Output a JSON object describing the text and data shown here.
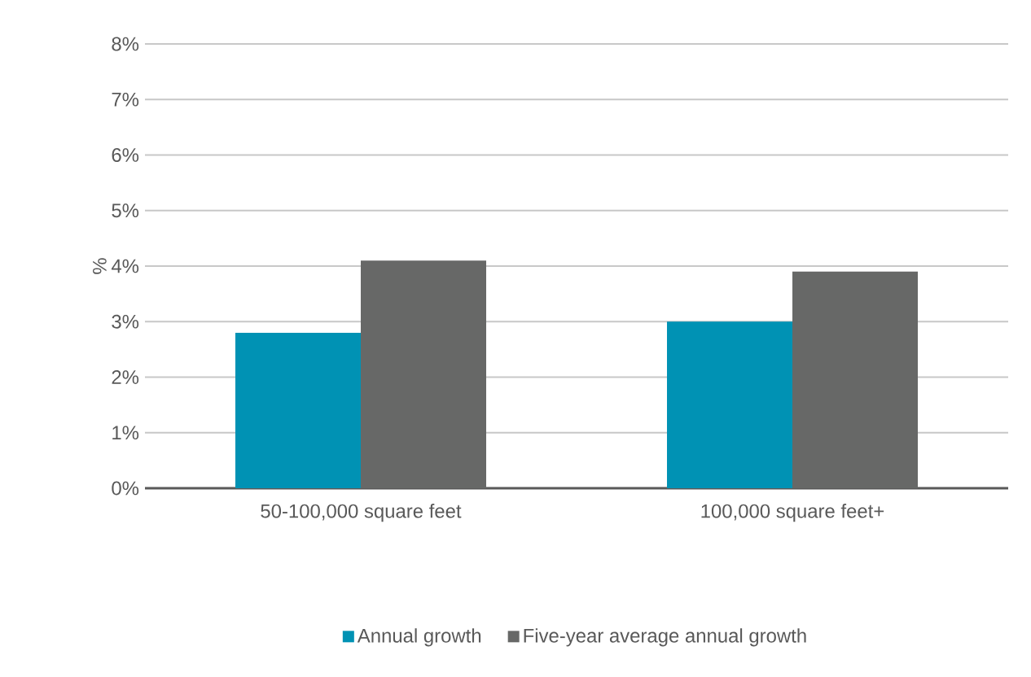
{
  "chart_data": {
    "type": "bar",
    "ylabel": "%",
    "categories": [
      "50-100,000 square feet",
      "100,000 square feet+"
    ],
    "series": [
      {
        "name": "Annual growth",
        "color": "#0092b4",
        "values": [
          2.8,
          3.0
        ]
      },
      {
        "name": "Five-year average annual growth",
        "color": "#676867",
        "values": [
          4.1,
          3.9
        ]
      }
    ],
    "ylim": [
      0,
      8
    ],
    "yticks": [
      {
        "value": 0,
        "label": "0%"
      },
      {
        "value": 1,
        "label": "1%"
      },
      {
        "value": 2,
        "label": "2%"
      },
      {
        "value": 3,
        "label": "3%"
      },
      {
        "value": 4,
        "label": "4%"
      },
      {
        "value": 5,
        "label": "5%"
      },
      {
        "value": 6,
        "label": "6%"
      },
      {
        "value": 7,
        "label": "7%"
      },
      {
        "value": 8,
        "label": "8%"
      }
    ],
    "grid": "y",
    "legend": "bottom"
  }
}
